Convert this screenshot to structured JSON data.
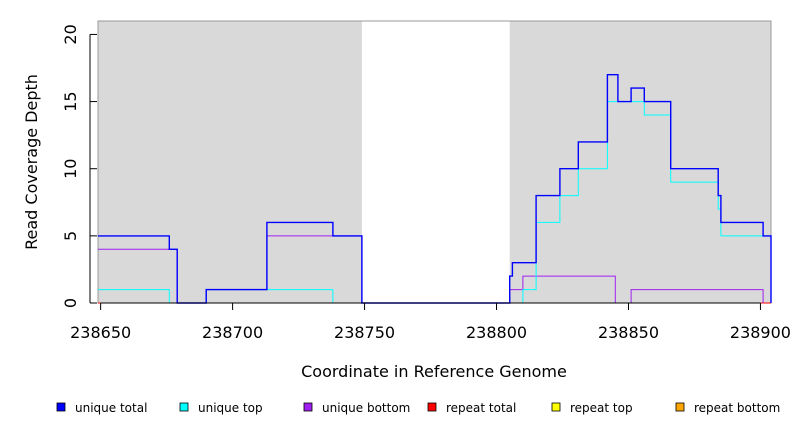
{
  "chart_data": {
    "type": "line",
    "step": true,
    "xlabel": "Coordinate in Reference Genome",
    "ylabel": "Read Coverage Depth",
    "xlim": [
      238649,
      238904
    ],
    "ylim": [
      0,
      21
    ],
    "x_ticks": [
      238650,
      238700,
      238750,
      238800,
      238850,
      238900
    ],
    "y_ticks": [
      0,
      5,
      10,
      15,
      20
    ],
    "shaded_regions": [
      [
        238649,
        238749
      ],
      [
        238805,
        238904
      ]
    ],
    "shade_color": "#d9d9d9",
    "series": [
      {
        "name": "unique total",
        "color": "#0000ff",
        "points": [
          [
            238649,
            5
          ],
          [
            238676,
            4
          ],
          [
            238679,
            0
          ],
          [
            238690,
            1
          ],
          [
            238713,
            6
          ],
          [
            238738,
            5
          ],
          [
            238749,
            0
          ],
          [
            238805,
            2
          ],
          [
            238806,
            3
          ],
          [
            238815,
            8
          ],
          [
            238824,
            10
          ],
          [
            238831,
            12
          ],
          [
            238842,
            17
          ],
          [
            238846,
            15
          ],
          [
            238851,
            16
          ],
          [
            238856,
            15
          ],
          [
            238866,
            10
          ],
          [
            238884,
            8
          ],
          [
            238885,
            6
          ],
          [
            238901,
            5
          ],
          [
            238904,
            0
          ]
        ]
      },
      {
        "name": "unique top",
        "color": "#00ffff",
        "points": [
          [
            238649,
            1
          ],
          [
            238676,
            0
          ],
          [
            238690,
            1
          ],
          [
            238713,
            1
          ],
          [
            238738,
            0
          ],
          [
            238810,
            1
          ],
          [
            238815,
            6
          ],
          [
            238824,
            8
          ],
          [
            238831,
            10
          ],
          [
            238842,
            15
          ],
          [
            238856,
            14
          ],
          [
            238866,
            9
          ],
          [
            238884,
            7
          ],
          [
            238885,
            5
          ],
          [
            238901,
            5
          ],
          [
            238904,
            0
          ]
        ]
      },
      {
        "name": "unique bottom",
        "color": "#a020f0",
        "points": [
          [
            238649,
            4
          ],
          [
            238679,
            0
          ],
          [
            238690,
            1
          ],
          [
            238713,
            5
          ],
          [
            238749,
            0
          ],
          [
            238805,
            1
          ],
          [
            238810,
            2
          ],
          [
            238845,
            0
          ],
          [
            238851,
            1
          ],
          [
            238901,
            0
          ]
        ]
      },
      {
        "name": "repeat total",
        "color": "#ff0000",
        "points": [
          [
            238649,
            0
          ],
          [
            238904,
            0
          ]
        ]
      },
      {
        "name": "repeat top",
        "color": "#ffff00",
        "points": [
          [
            238649,
            0
          ],
          [
            238904,
            0
          ]
        ]
      },
      {
        "name": "repeat bottom",
        "color": "#ffa500",
        "points": [
          [
            238649,
            0
          ],
          [
            238904,
            0
          ]
        ]
      }
    ],
    "legend_position": "bottom"
  }
}
